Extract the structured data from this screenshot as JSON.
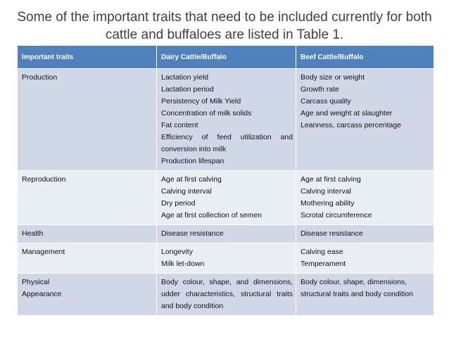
{
  "slide": {
    "title": "Some of the important traits that need to be included currently for both cattle and buffaloes are listed in Table 1."
  },
  "table": {
    "headers": [
      "Important traits",
      "Dairy Cattle/Buffalo",
      "Beef Cattle/Buffalo"
    ],
    "rows": [
      {
        "category": "Production",
        "dairy": [
          "Lactation yield",
          "Lactation period",
          "Persistency of Milk Yield",
          "Concentration of milk solids",
          "Fat content",
          "Efficiency of feed utilization and conversion into milk",
          "Production lifespan"
        ],
        "beef": [
          "Body size or weight",
          "Growth rate",
          "Carcass quality",
          "Age and weight at slaughter",
          "Leanness, carcass percentage"
        ]
      },
      {
        "category": "Reproduction",
        "dairy": [
          "Age at first calving",
          "Calving interval",
          "Dry period",
          "Age at first collection of semen"
        ],
        "beef": [
          "Age at first calving",
          "Calving interval",
          "Mothering ability",
          "Scrotal circumference"
        ]
      },
      {
        "category": "Health",
        "dairy": [
          "Disease resistance"
        ],
        "beef": [
          "Disease resistance"
        ]
      },
      {
        "category": "Management",
        "dairy": [
          "Longevity",
          "Milk let-down"
        ],
        "beef": [
          "Calving ease",
          "Temperament"
        ]
      },
      {
        "category": "Physical Appearance",
        "dairy": [
          "Body colour, shape, and dimensions, udder characteristics, structural traits and body condition"
        ],
        "beef": [
          "Body colour, shape, dimensions, structural traits and body condition"
        ]
      }
    ]
  }
}
